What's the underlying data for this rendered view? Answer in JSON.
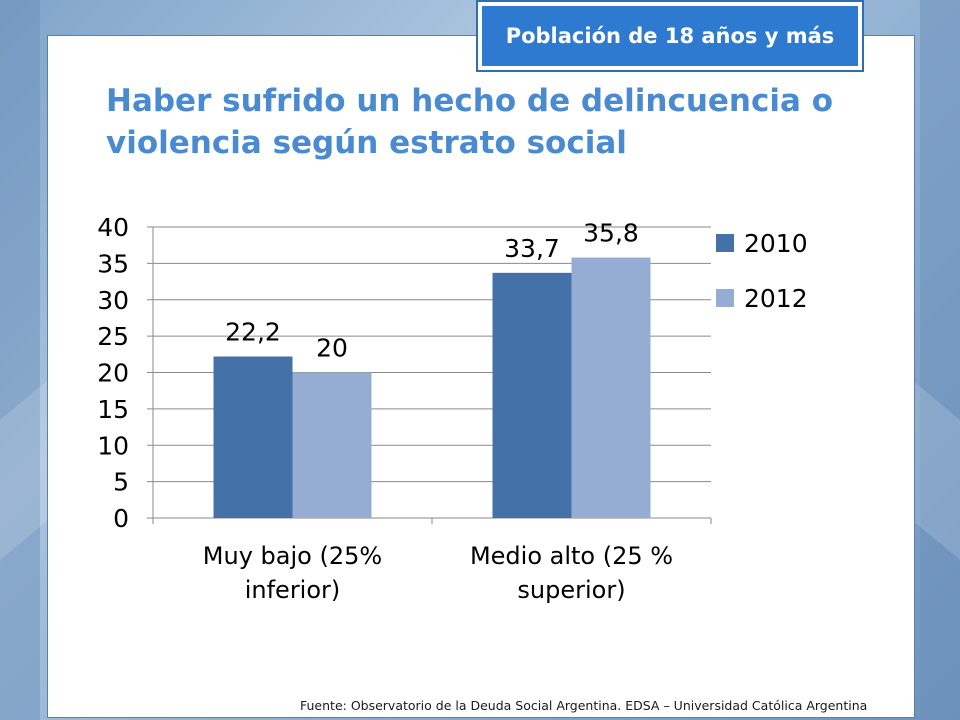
{
  "badge": {
    "text": "Población de 18 años y más"
  },
  "title": {
    "line1": "Haber sufrido un hecho de delincuencia o",
    "line2": "violencia según estrato social"
  },
  "footer": {
    "text": "Fuente:  Observatorio de  la Deuda Social Argentina. EDSA  – Universidad Católica Argentina"
  },
  "colors": {
    "series_2010": "#4472a8",
    "series_2012": "#95add3",
    "accent": "#2f7ad1",
    "title": "#4a8ad0"
  },
  "chart_data": {
    "type": "bar",
    "title": "Haber sufrido un hecho de delincuencia o violencia según estrato social",
    "categories": [
      [
        "Muy bajo (25%",
        "inferior)"
      ],
      [
        "Medio alto (25 %",
        "superior)"
      ]
    ],
    "series": [
      {
        "name": "2010",
        "values": [
          22.2,
          33.7
        ],
        "labels": [
          "22,2",
          "33,7"
        ]
      },
      {
        "name": "2012",
        "values": [
          20,
          35.8
        ],
        "labels": [
          "20",
          "35,8"
        ]
      }
    ],
    "ylim": [
      0,
      40
    ],
    "yticks": [
      0,
      5,
      10,
      15,
      20,
      25,
      30,
      35,
      40
    ],
    "grid": true,
    "legend": "right",
    "xlabel": "",
    "ylabel": ""
  }
}
